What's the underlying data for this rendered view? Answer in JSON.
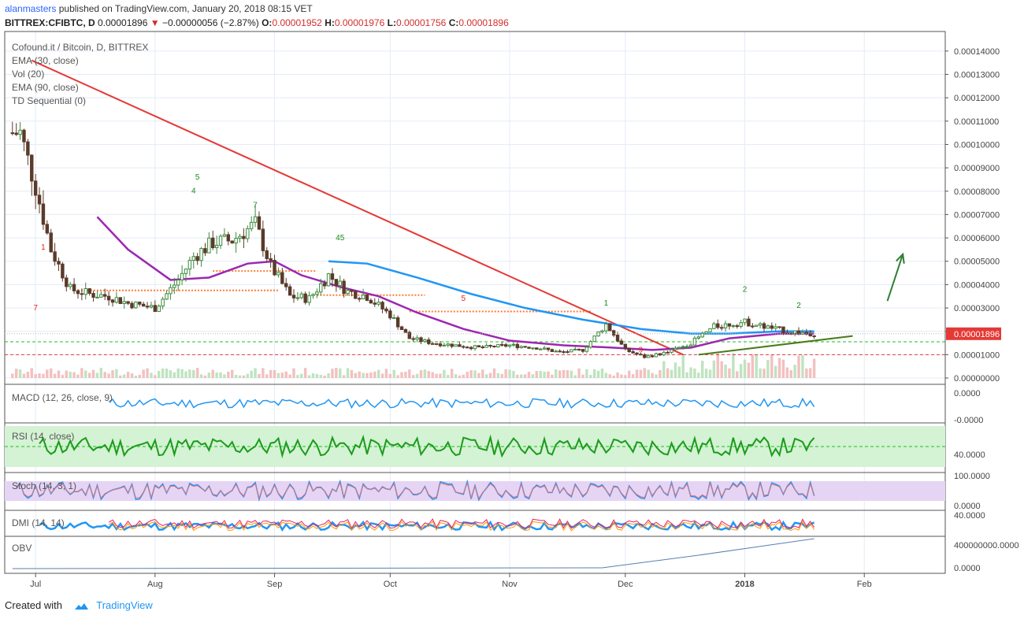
{
  "header": {
    "username": "alanmasters",
    "published_text": "published on TradingView.com, January 20, 2018 08:15 VET",
    "symbol": "BITTREX:CFIBTC, D",
    "last": "0.00001896",
    "change_arrow": "▼",
    "change": "−0.00000056 (−2.87%)",
    "o_label": "O:",
    "o": "0.00001952",
    "h_label": "H:",
    "h": "0.00001976",
    "l_label": "L:",
    "l": "0.00001756",
    "c_label": "C:",
    "c": "0.00001896"
  },
  "footer": {
    "created_with": "Created with",
    "brand": "TradingView"
  },
  "chart_data": {
    "type": "candlestick",
    "title": "Cofound.it / Bitcoin, D, BITTREX",
    "indicators_legend": [
      "EMA (30, close)",
      "Vol (20)",
      "EMA (90, close)",
      "TD Sequential (0)"
    ],
    "x_tick_labels": [
      "Jul",
      "Aug",
      "Sep",
      "Oct",
      "Nov",
      "Dec",
      "2018",
      "Feb"
    ],
    "price_axis_ticks": [
      "0.00014000",
      "0.00013000",
      "0.00012000",
      "0.00011000",
      "0.00010000",
      "0.00009000",
      "0.00008000",
      "0.00007000",
      "0.00006000",
      "0.00005000",
      "0.00004000",
      "0.00003000",
      "0.00002000",
      "0.00001000",
      "0.00000000"
    ],
    "ylim": [
      0,
      0.000145
    ],
    "last_price_label": "0.00001896",
    "price_series": {
      "dates": [
        "2017-06-27",
        "2017-07-01",
        "2017-07-05",
        "2017-07-10",
        "2017-07-15",
        "2017-07-20",
        "2017-07-25",
        "2017-08-01",
        "2017-08-07",
        "2017-08-11",
        "2017-08-16",
        "2017-08-21",
        "2017-08-27",
        "2017-08-31",
        "2017-09-05",
        "2017-09-10",
        "2017-09-15",
        "2017-09-20",
        "2017-09-25",
        "2017-10-01",
        "2017-10-06",
        "2017-10-12",
        "2017-10-18",
        "2017-10-24",
        "2017-11-01",
        "2017-11-08",
        "2017-11-14",
        "2017-11-20",
        "2017-11-26",
        "2017-12-01",
        "2017-12-06",
        "2017-12-12",
        "2017-12-18",
        "2017-12-24",
        "2018-01-01",
        "2018-01-06",
        "2018-01-12",
        "2018-01-19"
      ],
      "close": [
        0.000105,
        8.2e-05,
        5.5e-05,
        3.8e-05,
        3.6e-05,
        3.5e-05,
        3.2e-05,
        3e-05,
        4.2e-05,
        5.2e-05,
        5.8e-05,
        5.9e-05,
        6.6e-05,
        4.8e-05,
        3.5e-05,
        3.4e-05,
        4.4e-05,
        3.7e-05,
        3.5e-05,
        2.7e-05,
        1.7e-05,
        1.5e-05,
        1.4e-05,
        1.3e-05,
        1.4e-05,
        1.3e-05,
        1.1e-05,
        1.2e-05,
        2.3e-05,
        1.2e-05,
        9e-06,
        1.1e-05,
        1.5e-05,
        2.2e-05,
        2.4e-05,
        2.2e-05,
        2e-05,
        1.9e-05
      ]
    },
    "series": [
      {
        "name": "EMA (30, close)",
        "color": "#9c27b0",
        "dates": [
          "2017-07-17",
          "2017-07-25",
          "2017-08-05",
          "2017-08-15",
          "2017-08-25",
          "2017-09-01",
          "2017-09-08",
          "2017-09-18",
          "2017-09-28",
          "2017-10-08",
          "2017-10-20",
          "2017-11-01",
          "2017-11-15",
          "2017-11-28",
          "2017-12-08",
          "2017-12-18",
          "2017-12-28",
          "2018-01-10",
          "2018-01-19"
        ],
        "values": [
          6.9e-05,
          5.5e-05,
          4.2e-05,
          4.3e-05,
          4.9e-05,
          5e-05,
          4.4e-05,
          3.9e-05,
          3.5e-05,
          2.8e-05,
          2.1e-05,
          1.6e-05,
          1.4e-05,
          1.3e-05,
          1.2e-05,
          1.3e-05,
          1.7e-05,
          1.9e-05,
          1.9e-05
        ]
      },
      {
        "name": "EMA (90, close)",
        "color": "#2196f3",
        "dates": [
          "2017-09-15",
          "2017-09-25",
          "2017-10-08",
          "2017-10-22",
          "2017-11-05",
          "2017-11-20",
          "2017-12-05",
          "2017-12-18",
          "2017-12-28",
          "2018-01-10",
          "2018-01-19"
        ],
        "values": [
          5e-05,
          4.9e-05,
          4.3e-05,
          3.6e-05,
          3e-05,
          2.5e-05,
          2.1e-05,
          1.9e-05,
          1.9e-05,
          2e-05,
          2e-05
        ]
      }
    ],
    "drawings": [
      {
        "name": "red-trendline",
        "color": "#e53935",
        "from": [
          "2017-06-30",
          0.000136
        ],
        "to": [
          "2017-12-16",
          1e-05
        ]
      },
      {
        "name": "green-support-trendline",
        "color": "#4a7a1a",
        "from": [
          "2017-12-20",
          1e-05
        ],
        "to": [
          "2018-01-29",
          1.8e-05
        ]
      },
      {
        "name": "green-arrow",
        "color": "#2e7d32",
        "from": [
          "2018-02-07",
          3.3e-05
        ],
        "to": [
          "2018-02-11",
          5.3e-05
        ]
      },
      {
        "name": "green-dashed-level",
        "color": "#1fbf1f",
        "value": 1.55e-05
      },
      {
        "name": "red-dashed-level",
        "color": "#e53935",
        "value": 1e-05
      }
    ],
    "subpanes": [
      {
        "name": "MACD (12, 26, close, 9)",
        "ticks": [
          "0.0000",
          "-0.0000"
        ]
      },
      {
        "name": "RSI (14, close)",
        "ticks": [
          "40.0000"
        ]
      },
      {
        "name": "Stoch (14, 3, 1)",
        "ticks": [
          "100.0000",
          "0.0000"
        ]
      },
      {
        "name": "DMI (14, 14)",
        "ticks": [
          "40.0000"
        ]
      },
      {
        "name": "OBV",
        "ticks": [
          "400000000.0000",
          "0.0000"
        ]
      }
    ],
    "colors": {
      "up": "#3c8a3c",
      "down": "#5a3a2a",
      "grid": "#e3ecf7",
      "td_setup_green": "#1b8c1b",
      "td_setup_red": "#e0251b"
    }
  }
}
